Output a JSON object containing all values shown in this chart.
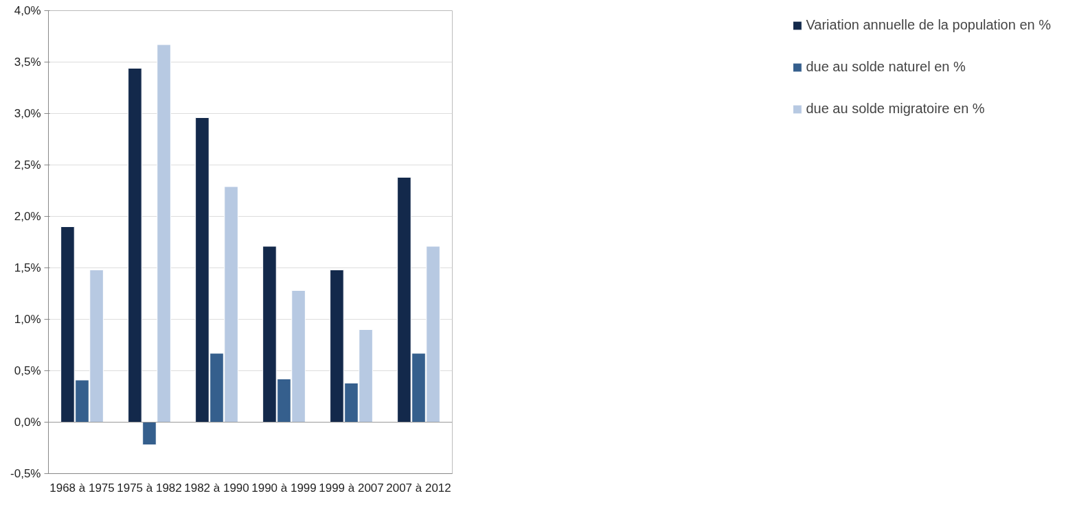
{
  "chart_data": {
    "type": "bar",
    "categories": [
      "1968 à 1975",
      "1975 à 1982",
      "1982 à 1990",
      "1990 à 1999",
      "1999 à 2007",
      "2007 à 2012"
    ],
    "series": [
      {
        "name": "Variation annuelle de la population en %",
        "color": "#13294b",
        "values": [
          1.9,
          3.44,
          2.96,
          1.71,
          1.48,
          2.38
        ]
      },
      {
        "name": "due au solde naturel en %",
        "color": "#355f8d",
        "values": [
          0.41,
          -0.22,
          0.67,
          0.42,
          0.38,
          0.67
        ]
      },
      {
        "name": "due au solde migratoire en %",
        "color": "#b7c9e2",
        "values": [
          1.48,
          3.67,
          2.29,
          1.28,
          0.9,
          1.71
        ]
      }
    ],
    "ylim": [
      -0.5,
      4.0
    ],
    "yticks": [
      {
        "value": -0.5,
        "label": "-0,5%"
      },
      {
        "value": 0.0,
        "label": "0,0%"
      },
      {
        "value": 0.5,
        "label": "0,5%"
      },
      {
        "value": 1.0,
        "label": "1,0%"
      },
      {
        "value": 1.5,
        "label": "1,5%"
      },
      {
        "value": 2.0,
        "label": "2,0%"
      },
      {
        "value": 2.5,
        "label": "2,5%"
      },
      {
        "value": 3.0,
        "label": "3,0%"
      },
      {
        "value": 3.5,
        "label": "3,5%"
      },
      {
        "value": 4.0,
        "label": "4,0%"
      }
    ],
    "grid": "y",
    "legend": "right"
  }
}
